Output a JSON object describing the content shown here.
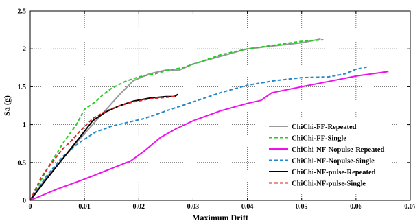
{
  "chart_data": {
    "type": "line",
    "title": "",
    "xlabel": "Maximum Drift",
    "ylabel": "Sa (g)",
    "xlim": [
      0,
      0.07
    ],
    "ylim": [
      0,
      2.5
    ],
    "xticks": [
      0,
      0.01,
      0.02,
      0.03,
      0.04,
      0.05,
      0.06,
      0.07
    ],
    "xtick_labels": [
      "0",
      "0.01",
      "0.02",
      "0.03",
      "0.04",
      "0.05",
      "0.06",
      "0.07"
    ],
    "yticks": [
      0,
      0.5,
      1,
      1.5,
      2,
      2.5
    ],
    "ytick_labels": [
      "0",
      "0.5",
      "1",
      "1.5",
      "2",
      "2.5"
    ],
    "grid": true,
    "legend_position": "bottom-right",
    "series": [
      {
        "name": "ChiChi-FF-Repeated",
        "color": "#999999",
        "dash": "solid",
        "x": [
          0,
          0.003,
          0.006,
          0.009,
          0.0115,
          0.014,
          0.0165,
          0.019,
          0.022,
          0.025,
          0.0275,
          0.03,
          0.035,
          0.04,
          0.045,
          0.05,
          0.0535
        ],
        "y": [
          0,
          0.3,
          0.55,
          0.8,
          1.0,
          1.2,
          1.4,
          1.58,
          1.67,
          1.72,
          1.72,
          1.8,
          1.9,
          2.0,
          2.04,
          2.08,
          2.13
        ]
      },
      {
        "name": "ChiChi-FF-Single",
        "color": "#22cc22",
        "dash": "dashed",
        "x": [
          0,
          0.003,
          0.006,
          0.0085,
          0.01,
          0.012,
          0.0135,
          0.015,
          0.0175,
          0.02,
          0.023,
          0.0255,
          0.028,
          0.031,
          0.035,
          0.04,
          0.045,
          0.05,
          0.054
        ],
        "y": [
          0,
          0.4,
          0.75,
          1.0,
          1.2,
          1.3,
          1.4,
          1.48,
          1.57,
          1.63,
          1.67,
          1.72,
          1.75,
          1.82,
          1.92,
          2.0,
          2.05,
          2.1,
          2.12
        ]
      },
      {
        "name": "ChiChi-NF-Nopulse-Repeated",
        "color": "#ee11ee",
        "dash": "solid",
        "x": [
          0,
          0.005,
          0.01,
          0.015,
          0.0185,
          0.021,
          0.024,
          0.027,
          0.03,
          0.035,
          0.04,
          0.0425,
          0.0445,
          0.05,
          0.055,
          0.06,
          0.066
        ],
        "y": [
          0,
          0.15,
          0.28,
          0.42,
          0.52,
          0.65,
          0.83,
          0.95,
          1.05,
          1.18,
          1.28,
          1.32,
          1.42,
          1.5,
          1.57,
          1.64,
          1.7
        ]
      },
      {
        "name": "ChiChi-NF-Nopulse-Single",
        "color": "#2288cc",
        "dash": "dashed",
        "x": [
          0,
          0.003,
          0.006,
          0.009,
          0.012,
          0.015,
          0.018,
          0.021,
          0.025,
          0.03,
          0.035,
          0.04,
          0.045,
          0.05,
          0.055,
          0.058,
          0.06,
          0.062
        ],
        "y": [
          0,
          0.32,
          0.58,
          0.76,
          0.9,
          0.98,
          1.03,
          1.08,
          1.18,
          1.3,
          1.42,
          1.52,
          1.58,
          1.62,
          1.63,
          1.67,
          1.73,
          1.76
        ]
      },
      {
        "name": "ChiChi-NF-pulse-Repeated",
        "color": "#000000",
        "dash": "solid",
        "x": [
          0,
          0.003,
          0.006,
          0.009,
          0.0115,
          0.014,
          0.0165,
          0.019,
          0.022,
          0.025,
          0.0265,
          0.027,
          0.0272
        ],
        "y": [
          0,
          0.28,
          0.55,
          0.82,
          1.05,
          1.17,
          1.25,
          1.31,
          1.35,
          1.37,
          1.37,
          1.39,
          1.4
        ]
      },
      {
        "name": "ChiChi-NF-pulse-Single",
        "color": "#dd2222",
        "dash": "dashed",
        "x": [
          0,
          0.002,
          0.004,
          0.006,
          0.0075,
          0.009,
          0.0115,
          0.014,
          0.0165,
          0.019,
          0.022,
          0.025,
          0.0265,
          0.027
        ],
        "y": [
          0,
          0.3,
          0.5,
          0.68,
          0.78,
          0.9,
          1.08,
          1.18,
          1.25,
          1.3,
          1.34,
          1.36,
          1.37,
          1.38
        ]
      }
    ]
  }
}
